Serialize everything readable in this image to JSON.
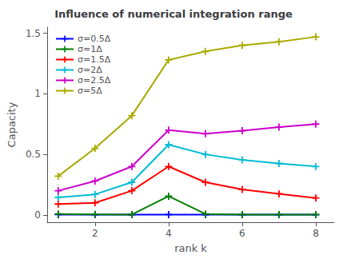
{
  "chart_data": {
    "type": "line",
    "title": "Influence of numerical integration range",
    "xlabel": "rank k",
    "ylabel": "Capacity",
    "x": [
      1,
      2,
      3,
      4,
      5,
      6,
      7,
      8
    ],
    "series": [
      {
        "name": "σ=0.5Δ",
        "color": "#0000ff",
        "values": [
          0.003,
          0.002,
          0.002,
          0.003,
          0.002,
          0.002,
          0.002,
          0.002
        ]
      },
      {
        "name": "σ=1Δ",
        "color": "#008000",
        "values": [
          0.008,
          0.005,
          0.003,
          0.155,
          0.008,
          0.003,
          0.003,
          0.003
        ]
      },
      {
        "name": "σ=1.5Δ",
        "color": "#ff0000",
        "values": [
          0.09,
          0.1,
          0.2,
          0.4,
          0.27,
          0.21,
          0.175,
          0.14
        ]
      },
      {
        "name": "σ=2Δ",
        "color": "#00bcd4",
        "values": [
          0.145,
          0.17,
          0.27,
          0.58,
          0.5,
          0.455,
          0.425,
          0.4
        ]
      },
      {
        "name": "σ=2.5Δ",
        "color": "#cc00cc",
        "values": [
          0.2,
          0.28,
          0.4,
          0.7,
          0.67,
          0.695,
          0.725,
          0.75
        ]
      },
      {
        "name": "σ=5Δ",
        "color": "#aaaa00",
        "values": [
          0.32,
          0.55,
          0.82,
          1.28,
          1.35,
          1.4,
          1.43,
          1.47
        ]
      }
    ],
    "xlim": [
      0.7,
      8.5
    ],
    "xticks": [
      2,
      4,
      6,
      8
    ],
    "ylim": [
      -0.06,
      1.55
    ],
    "yticks": [
      0,
      0.5,
      1,
      1.5
    ],
    "marker": "plus",
    "grid": false,
    "legend": "upper left"
  }
}
